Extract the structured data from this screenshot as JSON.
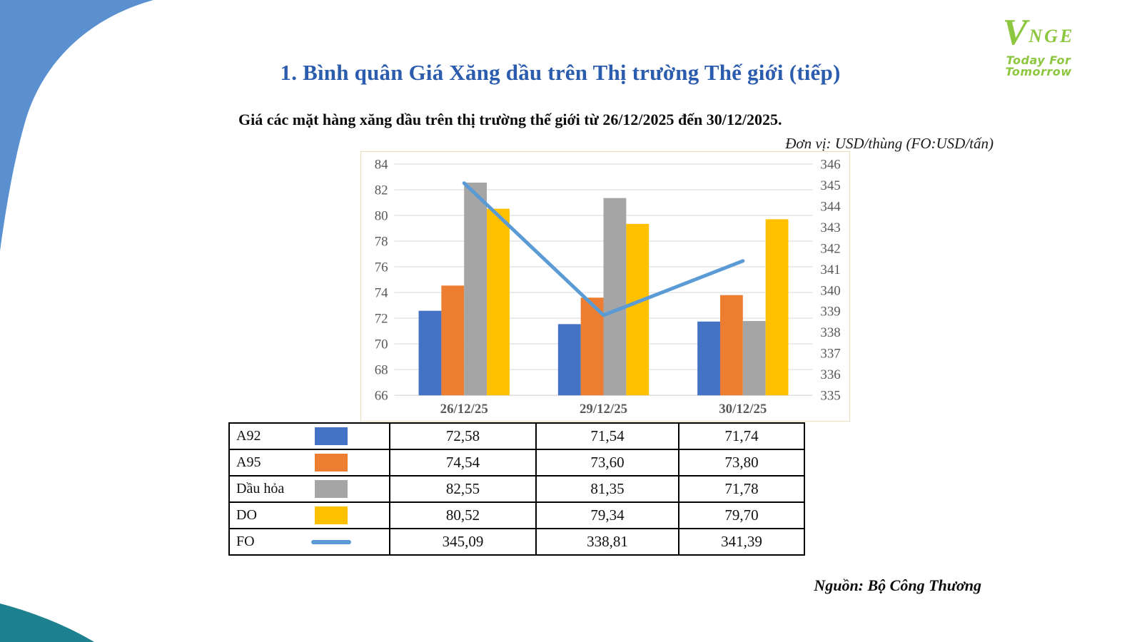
{
  "slide": {
    "title": "1. Bình quân Giá Xăng dầu trên Thị trường Thế giới (tiếp)",
    "subtitle": "Giá các mặt hàng xăng dầu trên thị trường thế giới từ 26/12/2025 đến 30/12/2025.",
    "unit_note": "Đơn vị: USD/thùng (FO:USD/tấn)",
    "source": "Nguồn: Bộ Công Thương"
  },
  "logo": {
    "brand_v": "V",
    "brand_rest": "NGE",
    "tagline": "Today For Tomorrow",
    "green": "#8dc63f"
  },
  "colors": {
    "title_blue": "#2b5cad",
    "corner_blue": "#5a8fd0",
    "corner_teal": "#1d818f",
    "chart_border": "#eadcb6",
    "gridline": "#d9d9d9",
    "axis_bottom_line": "#c6c6c6",
    "axis_text": "#595959"
  },
  "chart_data": {
    "type": "bar+line combo",
    "categories": [
      "26/12/25",
      "29/12/25",
      "30/12/25"
    ],
    "series": [
      {
        "name": "A92",
        "type": "bar",
        "axis": "left",
        "color": "#4472c4",
        "values": [
          72.58,
          71.54,
          71.74
        ],
        "display": [
          "72,58",
          "71,54",
          "71,74"
        ]
      },
      {
        "name": "A95",
        "type": "bar",
        "axis": "left",
        "color": "#ed7d31",
        "values": [
          74.54,
          73.6,
          73.8
        ],
        "display": [
          "74,54",
          "73,60",
          "73,80"
        ]
      },
      {
        "name": "Dầu hỏa",
        "type": "bar",
        "axis": "left",
        "color": "#a5a5a5",
        "values": [
          82.55,
          81.35,
          71.78
        ],
        "display": [
          "82,55",
          "81,35",
          "71,78"
        ]
      },
      {
        "name": "DO",
        "type": "bar",
        "axis": "left",
        "color": "#ffc000",
        "values": [
          80.52,
          79.34,
          79.7
        ],
        "display": [
          "80,52",
          "79,34",
          "79,70"
        ]
      },
      {
        "name": "FO",
        "type": "line",
        "axis": "right",
        "color": "#5b9bd5",
        "values": [
          345.09,
          338.81,
          341.39
        ],
        "display": [
          "345,09",
          "338,81",
          "341,39"
        ]
      }
    ],
    "left_axis": {
      "min": 66,
      "max": 84,
      "step": 2
    },
    "right_axis": {
      "min": 335,
      "max": 346,
      "step": 1
    },
    "grid": true,
    "legend_position": "table-below-chart"
  }
}
